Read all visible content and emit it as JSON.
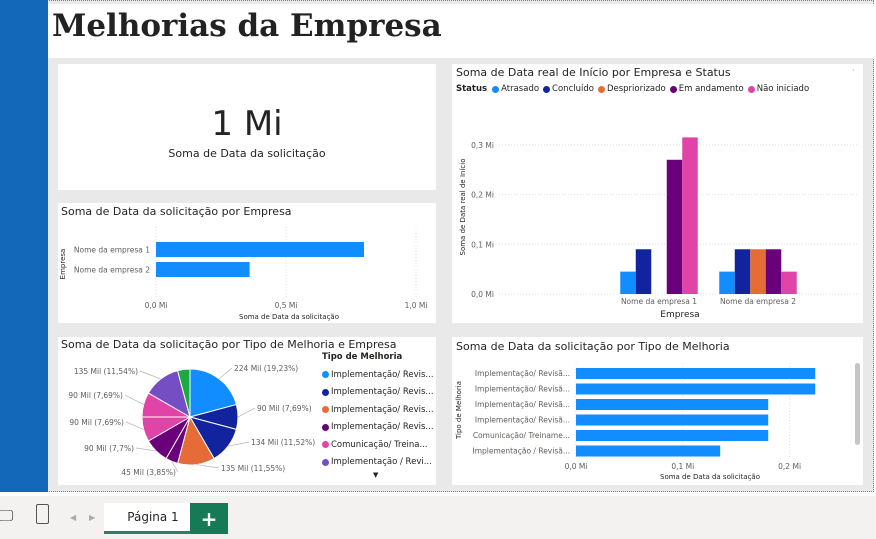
{
  "report": {
    "title": "Melhorias da Empresa"
  },
  "kpi_card": {
    "value": "1 Mi",
    "label": "Soma de Data da solicitação"
  },
  "colors": {
    "atrasado": "#118dff",
    "concluido": "#12239e",
    "despriorizado": "#e66c37",
    "em_andamento": "#6b007b",
    "nao_iniciado": "#e044a7",
    "series_5": "#744ec2",
    "series_6": "#1aab40",
    "bar_blue": "#118dff",
    "canvas": "#e9e9e9",
    "sidebar": "#1468b9",
    "tab_accent": "#167a57"
  },
  "status_chart": {
    "title": "Soma de Data real de Início por Empresa e Status",
    "legend_title": "Status",
    "legend": [
      "Atrasado",
      "Concluído",
      "Despriorizado",
      "Em andamento",
      "Não iniciado"
    ]
  },
  "bar_empresa_chart": {
    "title": "Soma de Data da solicitação por Empresa"
  },
  "pie_chart": {
    "title": "Soma de Data da solicitação por Tipo de Melhoria e Empresa",
    "legend_title": "Tipo de Melhoria",
    "legend": [
      "Implementação/ Revis...",
      "Implementação/ Revis...",
      "Implementação/ Revis...",
      "Implementação/ Revis...",
      "Comunicação/ Treina...",
      "Implementação / Revi..."
    ],
    "more_icon": "▼"
  },
  "tipo_chart": {
    "title": "Soma de Data da solicitação por Tipo de Melhoria"
  },
  "tabs": {
    "page_label": "Página 1",
    "add_label": "+",
    "desktop_icon": "🖵",
    "mobile_icon": "▯",
    "prev": "◀",
    "next": "▶"
  },
  "chart_data": [
    {
      "type": "bar",
      "title": "Soma de Data real de Início por Empresa e Status",
      "xlabel": "Empresa",
      "ylabel": "Soma de Data real de Início",
      "categories": [
        "Nome da empresa 1",
        "Nome da empresa 2"
      ],
      "ylim": [
        0,
        0.35
      ],
      "yticks": [
        0,
        0.1,
        0.2,
        0.3
      ],
      "ytick_labels": [
        "0,0 Mi",
        "0,1 Mi",
        "0,2 Mi",
        "0,3 Mi"
      ],
      "series": [
        {
          "name": "Atrasado",
          "values": [
            0.045,
            0.045
          ]
        },
        {
          "name": "Concluído",
          "values": [
            0.09,
            0.09
          ]
        },
        {
          "name": "Despriorizado",
          "values": [
            0,
            0.09
          ]
        },
        {
          "name": "Em andamento",
          "values": [
            0.27,
            0.09
          ]
        },
        {
          "name": "Não iniciado",
          "values": [
            0.315,
            0.045
          ]
        }
      ],
      "legend_position": "top-left",
      "grid": true
    },
    {
      "type": "bar",
      "orientation": "horizontal",
      "title": "Soma de Data da solicitação por Empresa",
      "xlabel": "Soma de Data da solicitação",
      "ylabel": "Empresa",
      "categories": [
        "Nome da empresa 1",
        "Nome da empresa 2"
      ],
      "values": [
        0.8,
        0.36
      ],
      "xlim": [
        0,
        1.0
      ],
      "xticks": [
        0,
        0.5,
        1.0
      ],
      "xtick_labels": [
        "0,0 Mi",
        "0,5 Mi",
        "1,0 Mi"
      ],
      "grid": true
    },
    {
      "type": "pie",
      "title": "Soma de Data da solicitação por Tipo de Melhoria e Empresa",
      "slices": [
        {
          "label": "224 Mil (19,23%)",
          "value": 19.23,
          "color": "#118dff"
        },
        {
          "label": "90 Mil (7,69%)",
          "value": 7.69,
          "color": "#12239e"
        },
        {
          "label": "134 Mil (11,52%)",
          "value": 11.52,
          "color": "#12239e"
        },
        {
          "label": "135 Mil (11,55%)",
          "value": 11.55,
          "color": "#e66c37"
        },
        {
          "label": "45 Mil (3,85%)",
          "value": 3.85,
          "color": "#6b007b"
        },
        {
          "label": "90 Mil (7,7%)",
          "value": 7.7,
          "color": "#6b007b"
        },
        {
          "label": "90 Mil (7,69%)",
          "value": 7.69,
          "color": "#e044a7"
        },
        {
          "label": "90 Mil (7,69%)",
          "value": 7.69,
          "color": "#e044a7"
        },
        {
          "label": "135 Mil (11,54%)",
          "value": 11.54,
          "color": "#744ec2"
        },
        {
          "label": "",
          "value": 3.85,
          "color": "#1aab40"
        }
      ]
    },
    {
      "type": "bar",
      "orientation": "horizontal",
      "title": "Soma de Data da solicitação por Tipo de Melhoria",
      "xlabel": "Soma de Data da solicitação",
      "ylabel": "Tipo de Melhoria",
      "categories": [
        "Implementação/ Revisã...",
        "Implementação/ Revisã...",
        "Implementação/ Revisã...",
        "Implementação/ Revisã...",
        "Comunicação/ Treiname...",
        "Implementação / Revisã..."
      ],
      "values": [
        0.224,
        0.224,
        0.18,
        0.18,
        0.18,
        0.135
      ],
      "xlim": [
        0,
        0.25
      ],
      "xticks": [
        0,
        0.1,
        0.2
      ],
      "xtick_labels": [
        "0,0 Mi",
        "0,1 Mi",
        "0,2 Mi"
      ],
      "grid": true
    }
  ]
}
